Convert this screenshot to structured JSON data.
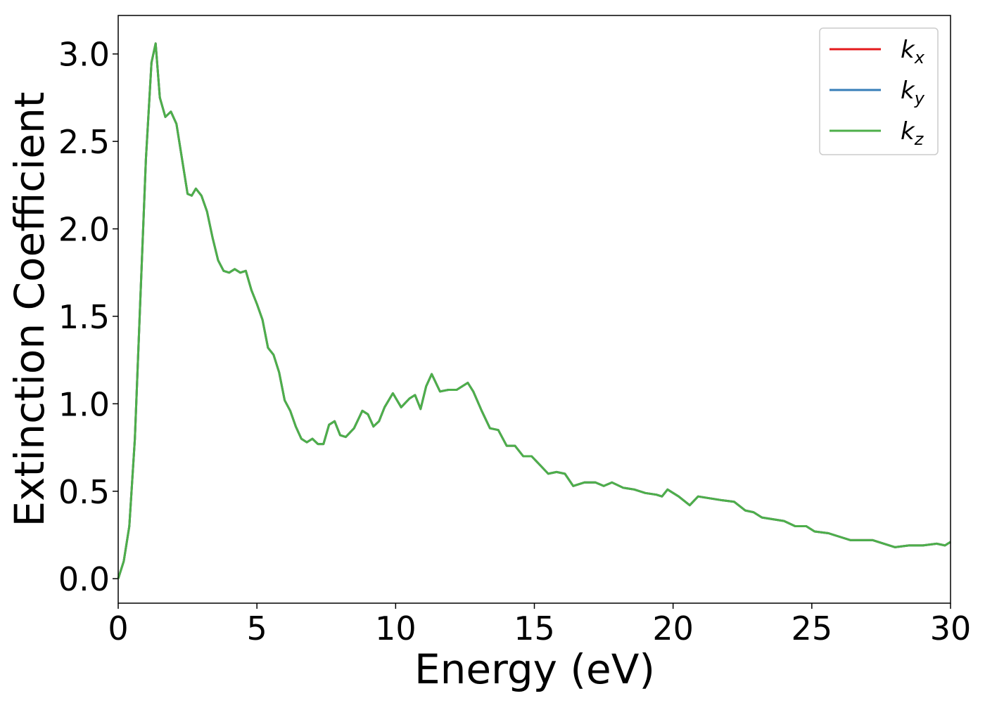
{
  "chart_data": {
    "type": "line",
    "xlabel": "Energy (eV)",
    "ylabel": "Extinction Coefficient",
    "x": [
      0,
      0.2,
      0.4,
      0.6,
      0.8,
      1.0,
      1.2,
      1.35,
      1.5,
      1.7,
      1.9,
      2.1,
      2.3,
      2.5,
      2.65,
      2.8,
      3.0,
      3.2,
      3.4,
      3.6,
      3.8,
      4.0,
      4.2,
      4.4,
      4.6,
      4.8,
      5.0,
      5.2,
      5.4,
      5.6,
      5.8,
      6.0,
      6.2,
      6.4,
      6.6,
      6.8,
      7.0,
      7.2,
      7.4,
      7.6,
      7.8,
      8.0,
      8.2,
      8.5,
      8.8,
      9.0,
      9.2,
      9.4,
      9.6,
      9.9,
      10.2,
      10.5,
      10.7,
      10.9,
      11.1,
      11.3,
      11.6,
      11.9,
      12.2,
      12.6,
      12.8,
      13.1,
      13.4,
      13.7,
      14.0,
      14.3,
      14.6,
      14.9,
      15.2,
      15.5,
      15.8,
      16.1,
      16.4,
      16.8,
      17.2,
      17.5,
      17.8,
      18.2,
      18.6,
      19.0,
      19.4,
      19.6,
      19.8,
      20.2,
      20.6,
      20.9,
      21.3,
      21.7,
      22.2,
      22.6,
      22.9,
      23.2,
      23.6,
      24.0,
      24.4,
      24.8,
      25.1,
      25.6,
      26.0,
      26.4,
      26.8,
      27.2,
      27.6,
      28.0,
      28.5,
      29.0,
      29.5,
      29.8,
      30.0
    ],
    "series": [
      {
        "name": "kx",
        "color": "#e41a1c",
        "values": [
          0,
          0.1,
          0.3,
          0.8,
          1.6,
          2.4,
          2.95,
          3.06,
          2.75,
          2.64,
          2.67,
          2.6,
          2.4,
          2.2,
          2.19,
          2.23,
          2.19,
          2.1,
          1.95,
          1.82,
          1.76,
          1.75,
          1.77,
          1.75,
          1.76,
          1.65,
          1.57,
          1.48,
          1.32,
          1.28,
          1.18,
          1.02,
          0.96,
          0.87,
          0.8,
          0.78,
          0.8,
          0.77,
          0.77,
          0.88,
          0.9,
          0.82,
          0.81,
          0.86,
          0.96,
          0.94,
          0.87,
          0.9,
          0.98,
          1.06,
          0.98,
          1.03,
          1.05,
          0.97,
          1.1,
          1.17,
          1.07,
          1.08,
          1.08,
          1.12,
          1.07,
          0.96,
          0.86,
          0.85,
          0.76,
          0.76,
          0.7,
          0.7,
          0.65,
          0.6,
          0.61,
          0.6,
          0.53,
          0.55,
          0.55,
          0.53,
          0.55,
          0.52,
          0.51,
          0.49,
          0.48,
          0.47,
          0.51,
          0.47,
          0.42,
          0.47,
          0.46,
          0.45,
          0.44,
          0.39,
          0.38,
          0.35,
          0.34,
          0.33,
          0.3,
          0.3,
          0.27,
          0.26,
          0.24,
          0.22,
          0.22,
          0.22,
          0.2,
          0.18,
          0.19,
          0.19,
          0.2,
          0.19,
          0.21
        ]
      },
      {
        "name": "ky",
        "color": "#377eb8",
        "values": [
          0,
          0.1,
          0.3,
          0.8,
          1.6,
          2.4,
          2.95,
          3.06,
          2.75,
          2.64,
          2.67,
          2.6,
          2.4,
          2.2,
          2.19,
          2.23,
          2.19,
          2.1,
          1.95,
          1.82,
          1.76,
          1.75,
          1.77,
          1.75,
          1.76,
          1.65,
          1.57,
          1.48,
          1.32,
          1.28,
          1.18,
          1.02,
          0.96,
          0.87,
          0.8,
          0.78,
          0.8,
          0.77,
          0.77,
          0.88,
          0.9,
          0.82,
          0.81,
          0.86,
          0.96,
          0.94,
          0.87,
          0.9,
          0.98,
          1.06,
          0.98,
          1.03,
          1.05,
          0.97,
          1.1,
          1.17,
          1.07,
          1.08,
          1.08,
          1.12,
          1.07,
          0.96,
          0.86,
          0.85,
          0.76,
          0.76,
          0.7,
          0.7,
          0.65,
          0.6,
          0.61,
          0.6,
          0.53,
          0.55,
          0.55,
          0.53,
          0.55,
          0.52,
          0.51,
          0.49,
          0.48,
          0.47,
          0.51,
          0.47,
          0.42,
          0.47,
          0.46,
          0.45,
          0.44,
          0.39,
          0.38,
          0.35,
          0.34,
          0.33,
          0.3,
          0.3,
          0.27,
          0.26,
          0.24,
          0.22,
          0.22,
          0.22,
          0.2,
          0.18,
          0.19,
          0.19,
          0.2,
          0.19,
          0.21
        ]
      },
      {
        "name": "kz",
        "color": "#4daf4a",
        "values": [
          0,
          0.1,
          0.3,
          0.8,
          1.6,
          2.4,
          2.95,
          3.06,
          2.75,
          2.64,
          2.67,
          2.6,
          2.4,
          2.2,
          2.19,
          2.23,
          2.19,
          2.1,
          1.95,
          1.82,
          1.76,
          1.75,
          1.77,
          1.75,
          1.76,
          1.65,
          1.57,
          1.48,
          1.32,
          1.28,
          1.18,
          1.02,
          0.96,
          0.87,
          0.8,
          0.78,
          0.8,
          0.77,
          0.77,
          0.88,
          0.9,
          0.82,
          0.81,
          0.86,
          0.96,
          0.94,
          0.87,
          0.9,
          0.98,
          1.06,
          0.98,
          1.03,
          1.05,
          0.97,
          1.1,
          1.17,
          1.07,
          1.08,
          1.08,
          1.12,
          1.07,
          0.96,
          0.86,
          0.85,
          0.76,
          0.76,
          0.7,
          0.7,
          0.65,
          0.6,
          0.61,
          0.6,
          0.53,
          0.55,
          0.55,
          0.53,
          0.55,
          0.52,
          0.51,
          0.49,
          0.48,
          0.47,
          0.51,
          0.47,
          0.42,
          0.47,
          0.46,
          0.45,
          0.44,
          0.39,
          0.38,
          0.35,
          0.34,
          0.33,
          0.3,
          0.3,
          0.27,
          0.26,
          0.24,
          0.22,
          0.22,
          0.22,
          0.2,
          0.18,
          0.19,
          0.19,
          0.2,
          0.19,
          0.21
        ]
      }
    ],
    "xlim": [
      0,
      30
    ],
    "xticks": [
      0,
      5,
      10,
      15,
      20,
      25,
      30
    ],
    "ylim": [
      -0.14,
      3.22
    ],
    "yticks": [
      {
        "value": 0,
        "label": "0.0"
      },
      {
        "value": 0.5,
        "label": "0.5"
      },
      {
        "value": 1,
        "label": "1.0"
      },
      {
        "value": 1.5,
        "label": "1.5"
      },
      {
        "value": 2,
        "label": "2.0"
      },
      {
        "value": 2.5,
        "label": "2.5"
      },
      {
        "value": 3,
        "label": "3.0"
      }
    ],
    "grid": false,
    "legend": "upper right"
  }
}
